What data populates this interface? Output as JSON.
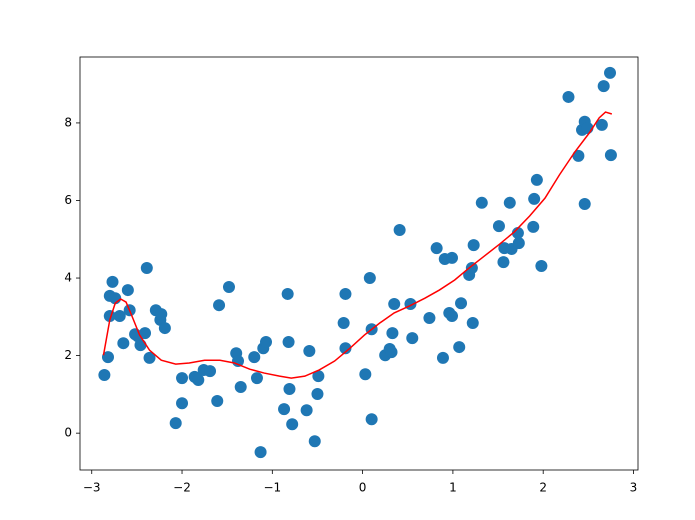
{
  "chart_data": {
    "type": "scatter",
    "xlim": [
      -3.13,
      3.05
    ],
    "ylim": [
      -0.95,
      9.7
    ],
    "xticks": [
      {
        "value": -3,
        "label": "−3"
      },
      {
        "value": -2,
        "label": "−2"
      },
      {
        "value": -1,
        "label": "−1"
      },
      0,
      1,
      2,
      3
    ],
    "yticks": [
      0,
      2,
      4,
      6,
      8
    ],
    "grid": false,
    "series": [
      {
        "type": "scatter",
        "color": "#1f77b4",
        "x": [
          -2.86,
          -2.82,
          -2.8,
          -2.8,
          -2.77,
          -2.74,
          -2.69,
          -2.65,
          -2.6,
          -2.58,
          -2.52,
          -2.49,
          -2.46,
          -2.41,
          -2.39,
          -2.36,
          -2.29,
          -2.24,
          -2.23,
          -2.19,
          -2.07,
          -2.0,
          -2.0,
          -1.86,
          -1.82,
          -1.76,
          -1.69,
          -1.61,
          -1.59,
          -1.48,
          -1.4,
          -1.38,
          -1.35,
          -1.2,
          -1.17,
          -1.13,
          -1.1,
          -1.07,
          -0.87,
          -0.83,
          -0.82,
          -0.81,
          -0.78,
          -0.62,
          -0.59,
          -0.53,
          -0.5,
          -0.49,
          -0.21,
          -0.19,
          -0.19,
          0.03,
          0.08,
          0.1,
          0.1,
          0.25,
          0.3,
          0.32,
          0.33,
          0.35,
          0.41,
          0.53,
          0.55,
          0.74,
          0.82,
          0.89,
          0.91,
          0.96,
          0.99,
          0.99,
          1.07,
          1.09,
          1.18,
          1.21,
          1.22,
          1.23,
          1.32,
          1.51,
          1.56,
          1.57,
          1.63,
          1.65,
          1.72,
          1.73,
          1.89,
          1.9,
          1.93,
          1.98,
          2.28,
          2.39,
          2.43,
          2.46,
          2.46,
          2.49,
          2.65,
          2.67,
          2.74,
          2.75
        ],
        "values": [
          1.5,
          1.96,
          3.54,
          3.02,
          3.9,
          3.48,
          3.02,
          2.32,
          3.69,
          3.17,
          2.55,
          2.5,
          2.27,
          2.58,
          4.26,
          1.94,
          3.17,
          2.92,
          3.07,
          2.71,
          0.26,
          1.42,
          0.77,
          1.45,
          1.37,
          1.63,
          1.6,
          0.83,
          3.3,
          3.77,
          2.06,
          1.86,
          1.19,
          1.96,
          1.42,
          -0.49,
          2.19,
          2.35,
          0.62,
          3.59,
          2.35,
          1.14,
          0.23,
          0.59,
          2.12,
          -0.21,
          1.01,
          1.47,
          2.84,
          3.59,
          2.19,
          1.52,
          4.0,
          2.68,
          0.36,
          2.01,
          2.17,
          2.09,
          2.58,
          3.33,
          5.24,
          3.33,
          2.45,
          2.97,
          4.77,
          1.94,
          4.49,
          3.1,
          4.52,
          3.02,
          2.22,
          3.35,
          4.08,
          4.26,
          2.84,
          4.85,
          5.94,
          5.34,
          4.41,
          4.77,
          5.94,
          4.75,
          5.16,
          4.9,
          5.32,
          6.04,
          6.53,
          4.31,
          8.67,
          7.15,
          7.82,
          8.03,
          5.91,
          7.87,
          7.95,
          8.95,
          9.29,
          7.17
        ]
      },
      {
        "type": "line",
        "color": "#ff0000",
        "x": [
          -2.87,
          -2.8,
          -2.74,
          -2.68,
          -2.62,
          -2.56,
          -2.47,
          -2.36,
          -2.23,
          -2.07,
          -1.92,
          -1.75,
          -1.58,
          -1.42,
          -1.25,
          -1.09,
          -0.92,
          -0.79,
          -0.64,
          -0.48,
          -0.31,
          -0.14,
          0.02,
          0.19,
          0.35,
          0.52,
          0.69,
          0.85,
          1.02,
          1.18,
          1.35,
          1.52,
          1.68,
          1.85,
          2.02,
          2.18,
          2.35,
          2.51,
          2.62,
          2.69,
          2.76
        ],
        "values": [
          2.01,
          2.92,
          3.35,
          3.46,
          3.38,
          3.05,
          2.53,
          2.14,
          1.88,
          1.78,
          1.81,
          1.88,
          1.88,
          1.81,
          1.65,
          1.55,
          1.47,
          1.42,
          1.47,
          1.63,
          1.86,
          2.19,
          2.53,
          2.84,
          3.1,
          3.28,
          3.48,
          3.69,
          3.95,
          4.26,
          4.57,
          4.88,
          5.19,
          5.6,
          6.06,
          6.66,
          7.25,
          7.74,
          8.13,
          8.28,
          8.23
        ]
      }
    ]
  }
}
